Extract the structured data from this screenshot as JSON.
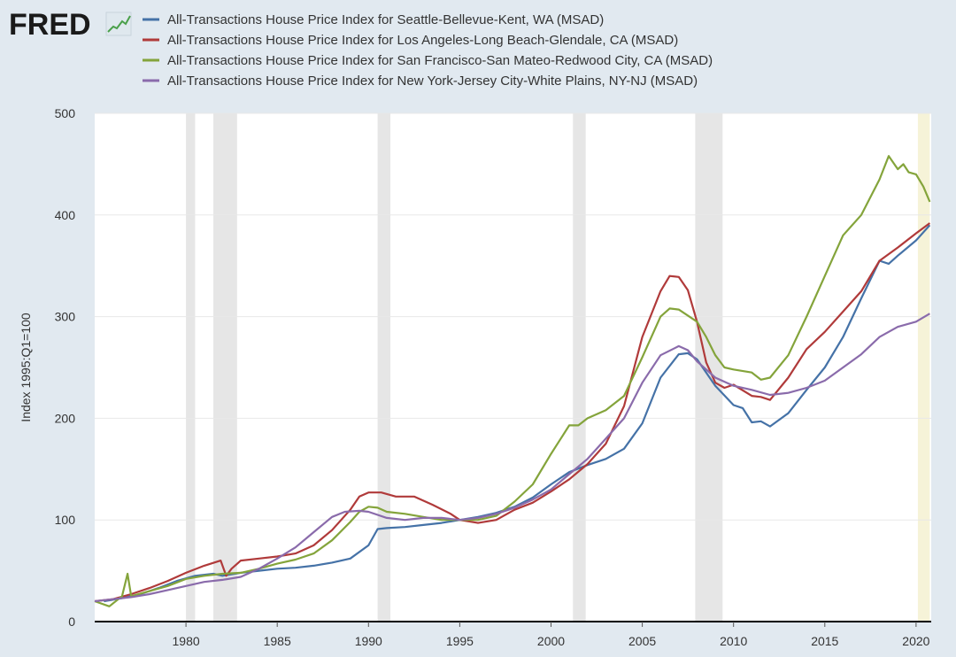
{
  "brand": {
    "name": "FRED",
    "logo_icon": "line-chart-icon"
  },
  "chart_data": {
    "type": "line",
    "title": "",
    "xlabel": "",
    "ylabel": "Index 1995:Q1=100",
    "ylim": [
      0,
      500
    ],
    "xlim": [
      1975.0,
      2020.83
    ],
    "yticks": [
      0,
      100,
      200,
      300,
      400,
      500
    ],
    "ytick_labels": [
      "0",
      "100",
      "200",
      "300",
      "400",
      "500"
    ],
    "xticks": [
      1980,
      1985,
      1990,
      1995,
      2000,
      2005,
      2010,
      2015,
      2020
    ],
    "xtick_labels": [
      "1980",
      "1985",
      "1990",
      "1995",
      "2000",
      "2005",
      "2010",
      "2015",
      "2020"
    ],
    "grid": true,
    "legend_position": "top",
    "recessions": [
      [
        1980.0,
        1980.5
      ],
      [
        1981.5,
        1982.8
      ],
      [
        1990.5,
        1991.2
      ],
      [
        2001.2,
        2001.9
      ],
      [
        2007.9,
        2009.4
      ],
      [
        2020.1,
        2020.75
      ]
    ],
    "series": [
      {
        "name": "All-Transactions House Price Index for Seattle-Bellevue-Kent, WA (MSAD)",
        "color": "#4572a7",
        "points": [
          [
            1975.5,
            20
          ],
          [
            1976.5,
            23
          ],
          [
            1977.5,
            27
          ],
          [
            1978.5,
            33
          ],
          [
            1979.5,
            40
          ],
          [
            1980.5,
            45
          ],
          [
            1981.5,
            47
          ],
          [
            1982.0,
            45
          ],
          [
            1983,
            48
          ],
          [
            1984,
            50
          ],
          [
            1985,
            52
          ],
          [
            1986,
            53
          ],
          [
            1987,
            55
          ],
          [
            1988,
            58
          ],
          [
            1989,
            62
          ],
          [
            1990,
            75
          ],
          [
            1990.5,
            91
          ],
          [
            1991,
            92
          ],
          [
            1992,
            93
          ],
          [
            1993,
            95
          ],
          [
            1994,
            97
          ],
          [
            1995,
            100
          ],
          [
            1996,
            103
          ],
          [
            1997,
            107
          ],
          [
            1998,
            113
          ],
          [
            1999,
            122
          ],
          [
            2000,
            135
          ],
          [
            2001,
            147
          ],
          [
            2002,
            154
          ],
          [
            2003,
            160
          ],
          [
            2004,
            170
          ],
          [
            2005,
            195
          ],
          [
            2006,
            240
          ],
          [
            2007,
            263
          ],
          [
            2007.5,
            264
          ],
          [
            2008,
            258
          ],
          [
            2009,
            232
          ],
          [
            2010,
            213
          ],
          [
            2010.5,
            210
          ],
          [
            2011,
            196
          ],
          [
            2011.5,
            197
          ],
          [
            2012,
            192
          ],
          [
            2013,
            205
          ],
          [
            2014,
            228
          ],
          [
            2015,
            250
          ],
          [
            2016,
            280
          ],
          [
            2017,
            318
          ],
          [
            2018,
            355
          ],
          [
            2018.5,
            352
          ],
          [
            2019,
            360
          ],
          [
            2020,
            375
          ],
          [
            2020.75,
            390
          ]
        ]
      },
      {
        "name": "All-Transactions House Price Index for Los Angeles-Long Beach-Glendale, CA (MSAD)",
        "color": "#b03a3a",
        "points": [
          [
            1975,
            20
          ],
          [
            1976,
            22
          ],
          [
            1977,
            27
          ],
          [
            1978,
            33
          ],
          [
            1979,
            40
          ],
          [
            1980,
            48
          ],
          [
            1981,
            55
          ],
          [
            1981.9,
            60
          ],
          [
            1982.2,
            45
          ],
          [
            1982.5,
            52
          ],
          [
            1983,
            60
          ],
          [
            1984,
            62
          ],
          [
            1985,
            64
          ],
          [
            1986,
            67
          ],
          [
            1987,
            75
          ],
          [
            1988,
            90
          ],
          [
            1989,
            110
          ],
          [
            1989.5,
            123
          ],
          [
            1990,
            127
          ],
          [
            1990.7,
            127
          ],
          [
            1991.5,
            123
          ],
          [
            1992.5,
            123
          ],
          [
            1993.5,
            115
          ],
          [
            1994.5,
            106
          ],
          [
            1995,
            100
          ],
          [
            1996,
            97
          ],
          [
            1997,
            100
          ],
          [
            1998,
            110
          ],
          [
            1999,
            117
          ],
          [
            2000,
            128
          ],
          [
            2001,
            140
          ],
          [
            2002,
            155
          ],
          [
            2003,
            175
          ],
          [
            2004,
            212
          ],
          [
            2005,
            280
          ],
          [
            2006,
            325
          ],
          [
            2006.5,
            340
          ],
          [
            2007,
            339
          ],
          [
            2007.5,
            326
          ],
          [
            2008,
            295
          ],
          [
            2008.5,
            255
          ],
          [
            2009,
            235
          ],
          [
            2009.5,
            230
          ],
          [
            2010,
            233
          ],
          [
            2011,
            222
          ],
          [
            2011.5,
            221
          ],
          [
            2012,
            218
          ],
          [
            2013,
            240
          ],
          [
            2014,
            268
          ],
          [
            2015,
            285
          ],
          [
            2016,
            305
          ],
          [
            2017,
            325
          ],
          [
            2018,
            355
          ],
          [
            2019,
            368
          ],
          [
            2020,
            382
          ],
          [
            2020.75,
            392
          ]
        ]
      },
      {
        "name": "All-Transactions House Price Index for San Francisco-San Mateo-Redwood City, CA (MSAD)",
        "color": "#84a43b",
        "points": [
          [
            1975,
            20
          ],
          [
            1975.8,
            15
          ],
          [
            1976.5,
            25
          ],
          [
            1976.8,
            47
          ],
          [
            1977,
            25
          ],
          [
            1978,
            30
          ],
          [
            1979,
            35
          ],
          [
            1980,
            42
          ],
          [
            1981,
            45
          ],
          [
            1982,
            47
          ],
          [
            1983,
            48
          ],
          [
            1984,
            52
          ],
          [
            1985,
            57
          ],
          [
            1986,
            61
          ],
          [
            1987,
            67
          ],
          [
            1988,
            80
          ],
          [
            1989,
            98
          ],
          [
            1989.5,
            108
          ],
          [
            1990,
            113
          ],
          [
            1990.5,
            112
          ],
          [
            1991,
            108
          ],
          [
            1992,
            106
          ],
          [
            1993,
            103
          ],
          [
            1994,
            100
          ],
          [
            1995,
            100
          ],
          [
            1996,
            100
          ],
          [
            1997,
            104
          ],
          [
            1998,
            118
          ],
          [
            1999,
            135
          ],
          [
            2000,
            165
          ],
          [
            2001,
            193
          ],
          [
            2001.5,
            193
          ],
          [
            2002,
            200
          ],
          [
            2003,
            208
          ],
          [
            2004,
            222
          ],
          [
            2005,
            260
          ],
          [
            2006,
            300
          ],
          [
            2006.5,
            308
          ],
          [
            2007,
            307
          ],
          [
            2008,
            295
          ],
          [
            2008.5,
            280
          ],
          [
            2009,
            262
          ],
          [
            2009.5,
            250
          ],
          [
            2010,
            248
          ],
          [
            2011,
            245
          ],
          [
            2011.5,
            238
          ],
          [
            2012,
            240
          ],
          [
            2013,
            262
          ],
          [
            2014,
            300
          ],
          [
            2015,
            340
          ],
          [
            2016,
            380
          ],
          [
            2017,
            400
          ],
          [
            2018,
            435
          ],
          [
            2018.5,
            458
          ],
          [
            2019,
            445
          ],
          [
            2019.3,
            450
          ],
          [
            2019.6,
            442
          ],
          [
            2020,
            440
          ],
          [
            2020.4,
            428
          ],
          [
            2020.75,
            413
          ]
        ]
      },
      {
        "name": "All-Transactions House Price Index for New York-Jersey City-White Plains, NY-NJ (MSAD)",
        "color": "#8a6bab",
        "points": [
          [
            1975,
            20
          ],
          [
            1976,
            22
          ],
          [
            1977,
            24
          ],
          [
            1978,
            27
          ],
          [
            1979,
            31
          ],
          [
            1980,
            35
          ],
          [
            1981,
            39
          ],
          [
            1982,
            41
          ],
          [
            1983,
            44
          ],
          [
            1984,
            52
          ],
          [
            1985,
            62
          ],
          [
            1986,
            73
          ],
          [
            1987,
            88
          ],
          [
            1988,
            103
          ],
          [
            1988.7,
            108
          ],
          [
            1989.5,
            109
          ],
          [
            1990,
            108
          ],
          [
            1991,
            102
          ],
          [
            1992,
            100
          ],
          [
            1993,
            102
          ],
          [
            1994,
            102
          ],
          [
            1995,
            100
          ],
          [
            1996,
            102
          ],
          [
            1997,
            106
          ],
          [
            1998,
            112
          ],
          [
            1999,
            120
          ],
          [
            2000,
            130
          ],
          [
            2001,
            145
          ],
          [
            2002,
            160
          ],
          [
            2003,
            180
          ],
          [
            2004,
            200
          ],
          [
            2005,
            235
          ],
          [
            2006,
            262
          ],
          [
            2007,
            271
          ],
          [
            2007.5,
            267
          ],
          [
            2008,
            256
          ],
          [
            2009,
            240
          ],
          [
            2010,
            232
          ],
          [
            2011,
            228
          ],
          [
            2012,
            223
          ],
          [
            2013,
            225
          ],
          [
            2014,
            230
          ],
          [
            2015,
            237
          ],
          [
            2016,
            250
          ],
          [
            2017,
            263
          ],
          [
            2018,
            280
          ],
          [
            2019,
            290
          ],
          [
            2020,
            295
          ],
          [
            2020.75,
            303
          ]
        ]
      }
    ]
  }
}
